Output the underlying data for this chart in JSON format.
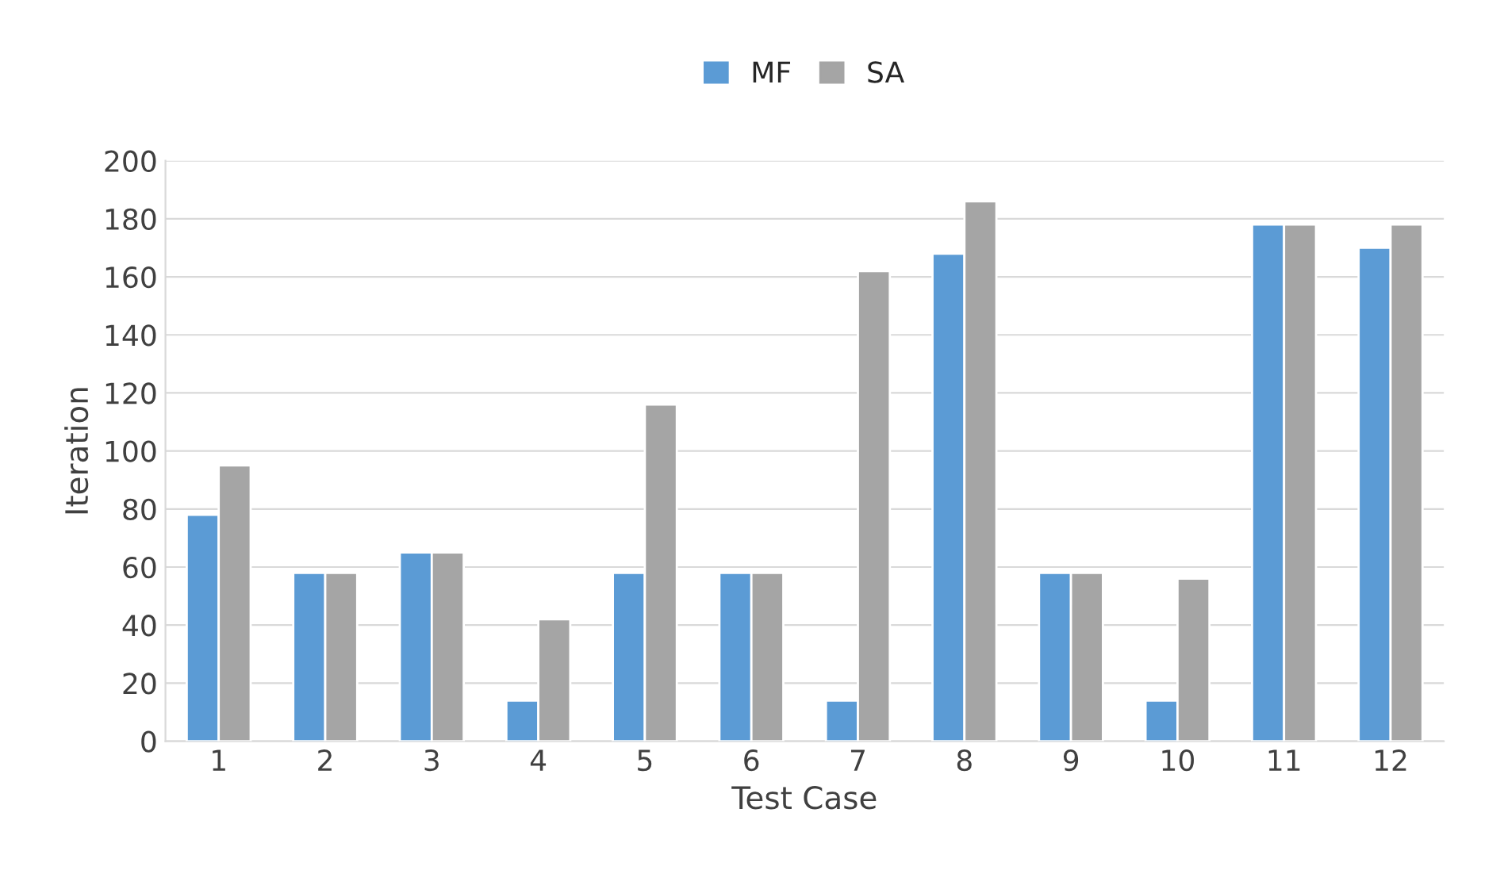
{
  "chart_data": {
    "type": "bar",
    "xlabel": "Test Case",
    "ylabel": "Iteration",
    "categories": [
      "1",
      "2",
      "3",
      "4",
      "5",
      "6",
      "7",
      "8",
      "9",
      "10",
      "11",
      "12"
    ],
    "series": [
      {
        "name": "MF",
        "color": "#5b9bd5",
        "values": [
          78,
          58,
          65,
          14,
          58,
          58,
          14,
          168,
          58,
          14,
          178,
          170
        ]
      },
      {
        "name": "SA",
        "color": "#a5a5a5",
        "values": [
          95,
          58,
          65,
          42,
          116,
          58,
          162,
          186,
          58,
          56,
          178,
          178
        ]
      }
    ],
    "ylim": [
      0,
      200
    ],
    "yticks": [
      0,
      20,
      40,
      60,
      80,
      100,
      120,
      140,
      160,
      180,
      200
    ],
    "grid": "y",
    "legend": "top"
  }
}
